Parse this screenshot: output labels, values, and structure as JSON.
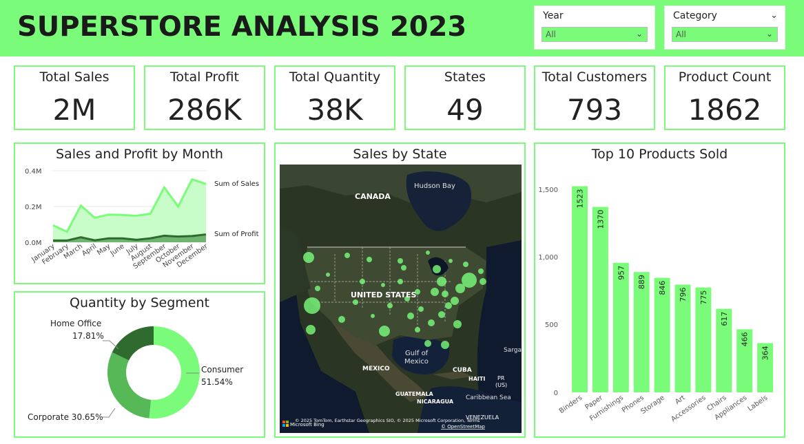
{
  "header": {
    "title": "SUPERSTORE ANALYSIS 2023",
    "accent": "#7afc7a"
  },
  "slicers": {
    "year": {
      "label": "Year",
      "value": "All"
    },
    "category": {
      "label": "Category",
      "value": "All"
    }
  },
  "cards": [
    {
      "label": "Total Sales",
      "value": "2M"
    },
    {
      "label": "Total Profit",
      "value": "286K"
    },
    {
      "label": "Total Quantity",
      "value": "38K"
    },
    {
      "label": "States",
      "value": "49"
    },
    {
      "label": "Total Customers",
      "value": "793"
    },
    {
      "label": "Product Count",
      "value": "1862"
    }
  ],
  "sales_profit": {
    "title": "Sales and Profit by Month",
    "series_sales_label": "Sum of Sales",
    "series_profit_label": "Sum of Profit",
    "y_ticks": [
      "0.4M",
      "0.2M",
      "0.0M"
    ]
  },
  "segment": {
    "title": "Quantity by Segment",
    "home_office_name": "Home Office",
    "home_office_pct": "17.81%",
    "consumer_name": "Consumer",
    "consumer_pct": "51.54%",
    "corporate_label": "Corporate 30.65%"
  },
  "map": {
    "title": "Sales by State",
    "label_canada": "CANADA",
    "label_hudson": "Hudson Bay",
    "label_us": "UNITED STATES",
    "label_mexico": "MEXICO",
    "label_gulf_1": "Gulf of",
    "label_gulf_2": "Mexico",
    "label_cuba": "CUBA",
    "label_haiti": "HAITI",
    "label_pr": "PR",
    "label_pr_us": "(US)",
    "label_guatemala": "GUATEMALA",
    "label_nicaragua": "NICARAGUA",
    "label_caribbean": "Caribbean Sea",
    "label_sargasso": "Sarga",
    "label_venezuela": "VENEZUELA",
    "attribution": "© 2025 TomTom, Earthstar Geographics SIO, © 2025 Microsoft Corporation, Terms",
    "attribution_osm": "© OpenStreetMap",
    "bing_label": "Microsoft Bing"
  },
  "chart_data": [
    {
      "type": "area",
      "title": "Sales and Profit by Month",
      "categories": [
        "January",
        "February",
        "March",
        "April",
        "May",
        "June",
        "July",
        "August",
        "September",
        "October",
        "November",
        "December"
      ],
      "series": [
        {
          "name": "Sum of Sales",
          "values": [
            95000,
            59000,
            205000,
            137000,
            155000,
            153000,
            148000,
            160000,
            307000,
            200000,
            352000,
            326000
          ]
        },
        {
          "name": "Sum of Profit",
          "values": [
            10000,
            10000,
            28000,
            11000,
            22000,
            22000,
            14000,
            22000,
            37000,
            32000,
            35000,
            44000
          ]
        }
      ],
      "ylim": [
        0,
        400000
      ],
      "colors": {
        "sales_fill": "#c8fcc8",
        "sales_line": "#7afc7a",
        "profit_fill": "#6fb46f",
        "profit_line": "#2e6b2e"
      }
    },
    {
      "type": "pie",
      "title": "Quantity by Segment",
      "categories": [
        "Consumer",
        "Corporate",
        "Home Office"
      ],
      "values": [
        51.54,
        30.65,
        17.81
      ],
      "colors": [
        "#7afc7a",
        "#56b856",
        "#2f6b2f"
      ]
    },
    {
      "type": "bar",
      "title": "Top 10 Products Sold",
      "categories": [
        "Binders",
        "Paper",
        "Furnishings",
        "Phones",
        "Storage",
        "Art",
        "Accessories",
        "Chairs",
        "Appliances",
        "Labels"
      ],
      "values": [
        1523,
        1370,
        957,
        889,
        846,
        796,
        775,
        617,
        466,
        364
      ],
      "y_ticks": [
        "1,500",
        "1,000",
        "500",
        "0"
      ],
      "ylim": [
        0,
        1600
      ],
      "color": "#7afc7a"
    }
  ]
}
